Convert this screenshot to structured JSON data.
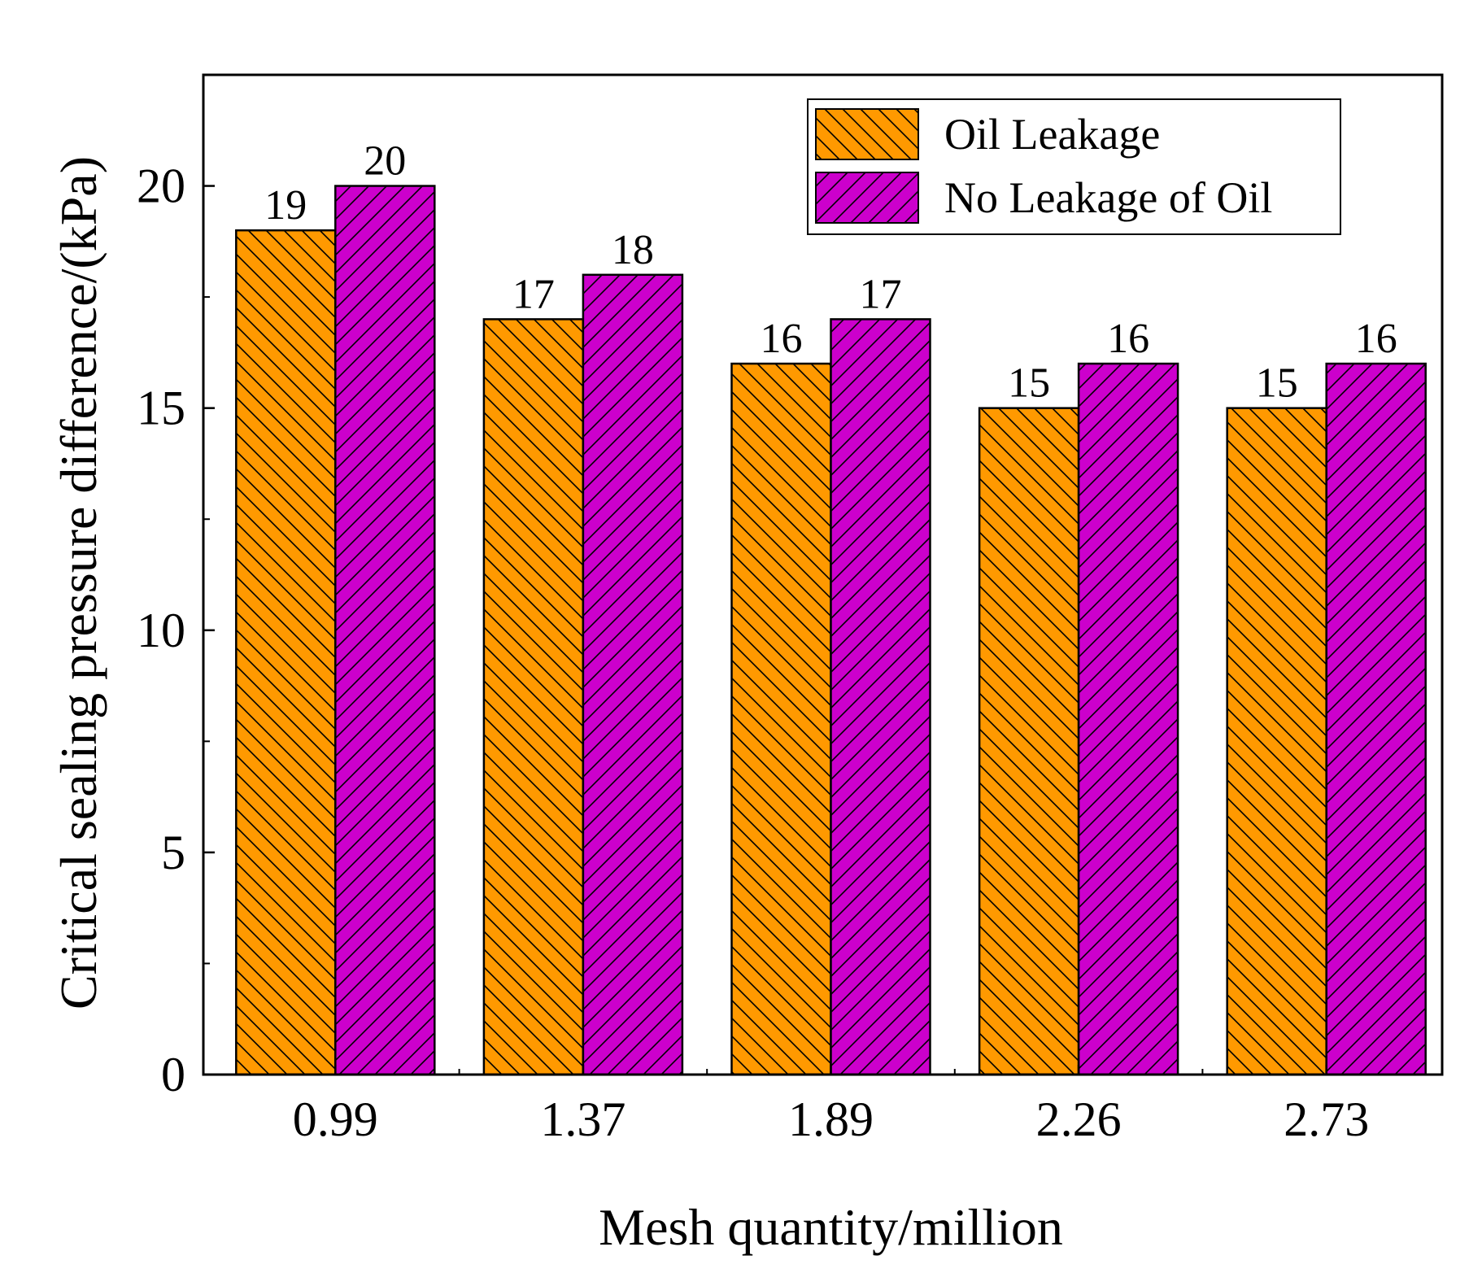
{
  "chart_data": {
    "type": "bar",
    "xlabel": "Mesh quantity/million",
    "ylabel": "Critical sealing pressure difference/(kPa)",
    "categories": [
      "0.99",
      "1.37",
      "1.89",
      "2.26",
      "2.73"
    ],
    "series": [
      {
        "name": "Oil Leakage",
        "values": [
          19,
          17,
          16,
          15,
          15
        ],
        "color": "#FF9900",
        "hatch": "backslash"
      },
      {
        "name": "No Leakage of Oil",
        "values": [
          20,
          18,
          17,
          16,
          16
        ],
        "color": "#CC00CC",
        "hatch": "slash"
      }
    ],
    "ylim": [
      0,
      22.5
    ],
    "yticks": [
      0,
      5,
      10,
      15,
      20
    ],
    "ytick_labels": [
      "0",
      "5",
      "10",
      "15",
      "20"
    ],
    "grid": false,
    "legend_position": "top-right"
  }
}
